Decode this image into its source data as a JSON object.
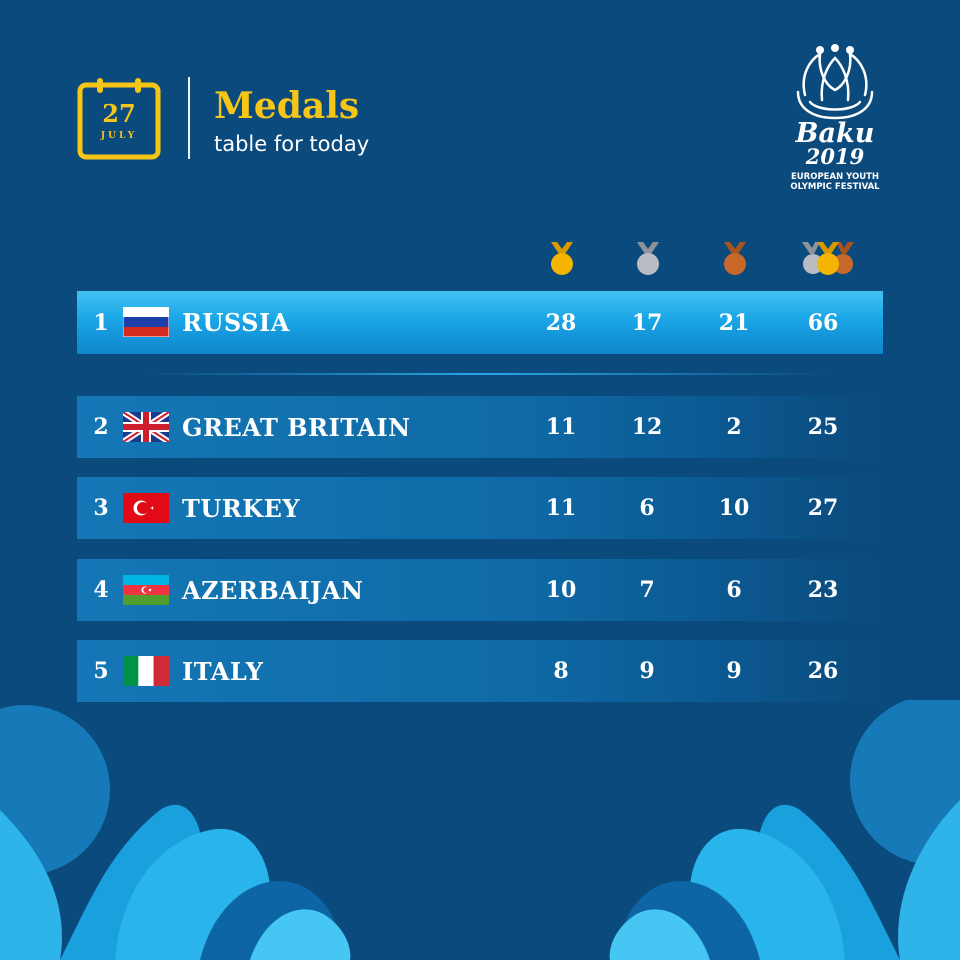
{
  "header": {
    "calendar": {
      "day": "27",
      "month": "JULY"
    },
    "title": "Medals",
    "subtitle": "table for today"
  },
  "logo": {
    "city": "Baku",
    "year": "2019",
    "line1": "EUROPEAN YOUTH",
    "line2": "OLYMPIC FESTIVAL"
  },
  "medal_columns": [
    {
      "icon": "gold-medal-icon",
      "color": "#f5b400"
    },
    {
      "icon": "silver-medal-icon",
      "color": "#b8bcc2"
    },
    {
      "icon": "bronze-medal-icon",
      "color": "#c8682a"
    },
    {
      "icon": "total-medals-icon",
      "color": "#f5b400"
    }
  ],
  "colors": {
    "background": "#0b4a7c",
    "accent": "#f5c518",
    "highlight_row": "#1aa5e6",
    "row": "#1372b1"
  },
  "rows": [
    {
      "rank": "1",
      "flag": "russia-flag-icon",
      "country": "RUSSIA",
      "gold": "28",
      "silver": "17",
      "bronze": "21",
      "total": "66"
    },
    {
      "rank": "2",
      "flag": "great-britain-flag-icon",
      "country": "GREAT BRITAIN",
      "gold": "11",
      "silver": "12",
      "bronze": "2",
      "total": "25"
    },
    {
      "rank": "3",
      "flag": "turkey-flag-icon",
      "country": "TURKEY",
      "gold": "11",
      "silver": "6",
      "bronze": "10",
      "total": "27"
    },
    {
      "rank": "4",
      "flag": "azerbaijan-flag-icon",
      "country": "AZERBAIJAN",
      "gold": "10",
      "silver": "7",
      "bronze": "6",
      "total": "23"
    },
    {
      "rank": "5",
      "flag": "italy-flag-icon",
      "country": "ITALY",
      "gold": "8",
      "silver": "9",
      "bronze": "9",
      "total": "26"
    }
  ]
}
